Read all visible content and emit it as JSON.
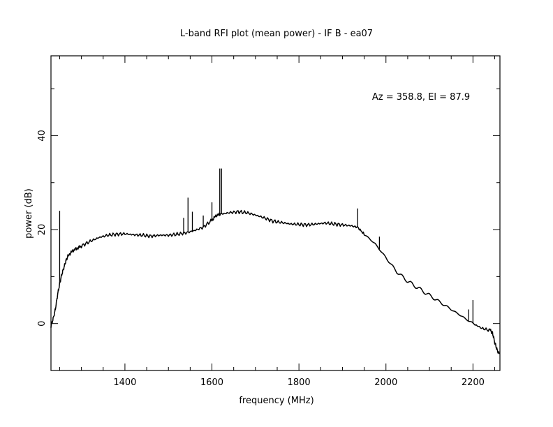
{
  "chart_data": {
    "type": "line",
    "title": "L-band RFI plot (mean power) - IF B - ea07",
    "xlabel": "frequency (MHz)",
    "ylabel": "power (dB)",
    "annotation": "Az = 358.8, El = 87.9",
    "xlim": [
      1230,
      2262
    ],
    "ylim": [
      -10,
      57
    ],
    "xticks": [
      1400,
      1600,
      1800,
      2000,
      2200
    ],
    "yticks": [
      0,
      20,
      40
    ],
    "grid": false,
    "legend": "none",
    "line_color": "#000000",
    "series": [
      {
        "x": [
          1230,
          1235,
          1240,
          1245,
          1250,
          1255,
          1260,
          1265,
          1270,
          1280,
          1290,
          1300,
          1320,
          1340,
          1360,
          1380,
          1400,
          1420,
          1440,
          1460,
          1480,
          1500,
          1520,
          1540,
          1560,
          1580,
          1600,
          1610,
          1620,
          1640,
          1660,
          1680,
          1700,
          1720,
          1740,
          1760,
          1780,
          1800,
          1820,
          1840,
          1860,
          1880,
          1900,
          1920,
          1935,
          1950,
          1975,
          2000,
          2025,
          2050,
          2075,
          2100,
          2125,
          2150,
          2175,
          2200,
          2220,
          2240,
          2245,
          2250,
          2255,
          2260
        ],
        "y": [
          -0.5,
          1,
          3,
          6,
          8.5,
          10.5,
          12,
          13.5,
          14.5,
          15.5,
          16,
          16.5,
          17.5,
          18.3,
          18.8,
          19,
          19.1,
          18.9,
          18.8,
          18.6,
          18.8,
          18.8,
          19,
          19.3,
          19.8,
          20.5,
          22,
          23,
          23.3,
          23.6,
          23.8,
          23.6,
          23.1,
          22.5,
          21.8,
          21.5,
          21.2,
          21.1,
          21,
          21.2,
          21.4,
          21.2,
          21,
          20.8,
          20.5,
          19,
          17,
          14,
          11,
          9,
          7.5,
          6,
          4.5,
          3,
          1.5,
          0,
          -1,
          -1.5,
          -2,
          -4,
          -5.5,
          -6.5
        ]
      }
    ],
    "spikes": [
      {
        "x": 1250,
        "y": 24
      },
      {
        "x": 1535,
        "y": 22.5
      },
      {
        "x": 1545,
        "y": 26.8
      },
      {
        "x": 1555,
        "y": 23.8
      },
      {
        "x": 1580,
        "y": 23
      },
      {
        "x": 1600,
        "y": 25.8
      },
      {
        "x": 1618,
        "y": 33
      },
      {
        "x": 1622,
        "y": 33
      },
      {
        "x": 1935,
        "y": 24.5
      },
      {
        "x": 1985,
        "y": 18.5
      },
      {
        "x": 2190,
        "y": 3
      },
      {
        "x": 2200,
        "y": 5
      }
    ]
  }
}
